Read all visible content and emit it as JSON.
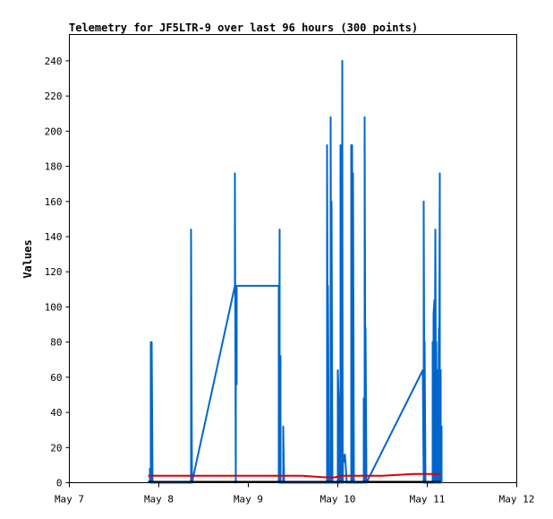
{
  "chart_data": {
    "type": "line",
    "title": "Telemetry for JF5LTR-9 over last 96 hours (300 points)",
    "xlabel": "",
    "ylabel": "Values",
    "xlim": [
      "May 7",
      "May 12"
    ],
    "ylim": [
      0,
      255
    ],
    "x_ticks": [
      "May 7",
      "May 8",
      "May 9",
      "May 10",
      "May 11",
      "May 12"
    ],
    "y_ticks": [
      0,
      20,
      40,
      60,
      80,
      100,
      120,
      140,
      160,
      180,
      200,
      220,
      240
    ],
    "grid": false,
    "legend": "none",
    "series": [
      {
        "color": "#0066cc",
        "x_unit": "days since May 7 00:00",
        "points": [
          [
            0.9,
            0
          ],
          [
            0.9,
            8
          ],
          [
            0.91,
            0
          ],
          [
            0.91,
            80
          ],
          [
            0.92,
            0
          ],
          [
            0.92,
            80
          ],
          [
            0.93,
            0
          ],
          [
            1.36,
            0
          ],
          [
            1.36,
            144
          ],
          [
            1.37,
            0
          ],
          [
            1.85,
            112
          ],
          [
            1.85,
            176
          ],
          [
            1.86,
            0
          ],
          [
            1.86,
            112
          ],
          [
            1.87,
            56
          ],
          [
            1.87,
            112
          ],
          [
            2.34,
            112
          ],
          [
            2.34,
            0
          ],
          [
            2.35,
            144
          ],
          [
            2.35,
            0
          ],
          [
            2.36,
            72
          ],
          [
            2.36,
            0
          ],
          [
            2.39,
            0
          ],
          [
            2.39,
            32
          ],
          [
            2.4,
            0
          ],
          [
            2.88,
            0
          ],
          [
            2.88,
            192
          ],
          [
            2.89,
            0
          ],
          [
            2.89,
            112
          ],
          [
            2.9,
            0
          ],
          [
            2.92,
            0
          ],
          [
            2.92,
            208
          ],
          [
            2.93,
            0
          ],
          [
            2.93,
            160
          ],
          [
            2.94,
            0
          ],
          [
            3.0,
            0
          ],
          [
            3.0,
            64
          ],
          [
            3.01,
            48
          ],
          [
            3.01,
            0
          ],
          [
            3.03,
            0
          ],
          [
            3.03,
            192
          ],
          [
            3.035,
            0
          ],
          [
            3.04,
            128
          ],
          [
            3.045,
            0
          ],
          [
            3.05,
            240
          ],
          [
            3.055,
            0
          ],
          [
            3.06,
            16
          ],
          [
            3.07,
            12
          ],
          [
            3.08,
            16
          ],
          [
            3.09,
            8
          ],
          [
            3.1,
            0
          ],
          [
            3.15,
            0
          ],
          [
            3.15,
            192
          ],
          [
            3.16,
            0
          ],
          [
            3.16,
            192
          ],
          [
            3.17,
            0
          ],
          [
            3.17,
            176
          ],
          [
            3.18,
            0
          ],
          [
            3.29,
            0
          ],
          [
            3.29,
            48
          ],
          [
            3.3,
            0
          ],
          [
            3.3,
            208
          ],
          [
            3.31,
            0
          ],
          [
            3.31,
            88
          ],
          [
            3.32,
            0
          ],
          [
            3.95,
            64
          ],
          [
            3.96,
            0
          ],
          [
            3.96,
            160
          ],
          [
            3.97,
            0
          ],
          [
            3.97,
            80
          ],
          [
            3.98,
            0
          ],
          [
            4.06,
            0
          ],
          [
            4.06,
            80
          ],
          [
            4.07,
            0
          ],
          [
            4.07,
            96
          ],
          [
            4.08,
            104
          ],
          [
            4.08,
            0
          ],
          [
            4.09,
            144
          ],
          [
            4.1,
            0
          ],
          [
            4.1,
            80
          ],
          [
            4.11,
            0
          ],
          [
            4.11,
            64
          ],
          [
            4.12,
            0
          ],
          [
            4.13,
            88
          ],
          [
            4.13,
            0
          ],
          [
            4.14,
            176
          ],
          [
            4.14,
            0
          ],
          [
            4.15,
            64
          ],
          [
            4.15,
            0
          ],
          [
            4.16,
            32
          ],
          [
            4.16,
            0
          ]
        ]
      },
      {
        "color": "#dd0000",
        "x_unit": "days since May 7 00:00",
        "points": [
          [
            0.88,
            4
          ],
          [
            1.5,
            4
          ],
          [
            2.2,
            4
          ],
          [
            2.6,
            4
          ],
          [
            2.88,
            3
          ],
          [
            2.96,
            3
          ],
          [
            3.05,
            4
          ],
          [
            3.5,
            4
          ],
          [
            3.85,
            5
          ],
          [
            4.15,
            5
          ]
        ]
      },
      {
        "color": "#000000",
        "x_unit": "days since May 7 00:00",
        "points": [
          [
            0.88,
            0.5
          ],
          [
            4.15,
            0.5
          ]
        ]
      }
    ]
  }
}
